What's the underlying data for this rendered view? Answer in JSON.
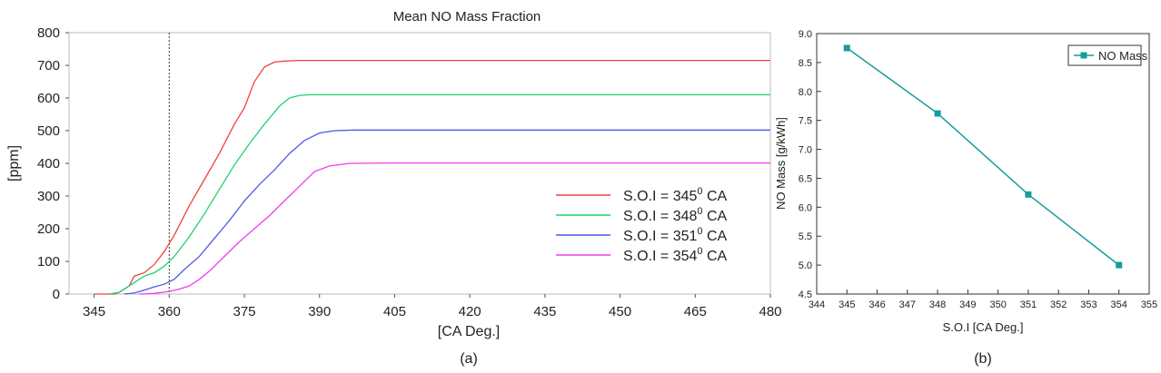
{
  "chart_data": [
    {
      "type": "line",
      "title": "Mean NO Mass Fraction",
      "xlabel": "[CA Deg.]",
      "ylabel": "[ppm]",
      "caption": "(a)",
      "xlim": [
        340,
        480
      ],
      "ylim": [
        0,
        800
      ],
      "xticks": [
        345,
        360,
        375,
        390,
        405,
        420,
        435,
        450,
        465,
        480
      ],
      "yticks": [
        0,
        100,
        200,
        300,
        400,
        500,
        600,
        700,
        800
      ],
      "reference_line_x": 360,
      "legend_position": "bottom-right",
      "series": [
        {
          "name": "S.O.I = 345",
          "sup": "0",
          "suffix": " CA",
          "color": "#f0413e",
          "x": [
            345,
            349,
            350,
            352,
            353,
            355,
            357,
            359,
            361,
            364,
            367,
            370,
            373,
            375,
            377,
            379,
            381,
            383,
            386,
            390,
            400,
            430,
            480
          ],
          "y": [
            0,
            0,
            5,
            25,
            55,
            65,
            90,
            130,
            180,
            270,
            350,
            430,
            520,
            570,
            650,
            695,
            710,
            713,
            715,
            715,
            715,
            715,
            715
          ]
        },
        {
          "name": "S.O.I = 348",
          "sup": "0",
          "suffix": " CA",
          "color": "#1ed26e",
          "x": [
            348,
            350,
            351,
            353,
            355,
            357,
            359,
            361,
            364,
            367,
            370,
            373,
            376,
            379,
            382,
            384,
            386,
            388,
            392,
            400,
            480
          ],
          "y": [
            0,
            5,
            15,
            35,
            55,
            65,
            85,
            115,
            175,
            245,
            320,
            395,
            460,
            520,
            575,
            600,
            608,
            610,
            610,
            610,
            610
          ]
        },
        {
          "name": "S.O.I = 351",
          "sup": "0",
          "suffix": " CA",
          "color": "#4c5ae8",
          "x": [
            351,
            353,
            355,
            357,
            359,
            361,
            363,
            366,
            369,
            372,
            375,
            378,
            381,
            384,
            387,
            390,
            393,
            397,
            405,
            480
          ],
          "y": [
            0,
            3,
            12,
            22,
            30,
            45,
            75,
            115,
            170,
            225,
            285,
            335,
            380,
            430,
            470,
            493,
            500,
            502,
            502,
            502
          ]
        },
        {
          "name": "S.O.I = 354",
          "sup": "0",
          "suffix": " CA",
          "color": "#ee3cf0",
          "x": [
            354,
            357,
            360,
            362,
            364,
            366,
            368,
            371,
            374,
            377,
            380,
            383,
            386,
            389,
            392,
            396,
            405,
            480
          ],
          "y": [
            0,
            2,
            8,
            15,
            25,
            45,
            70,
            115,
            160,
            200,
            240,
            285,
            330,
            375,
            392,
            400,
            401,
            401
          ]
        }
      ]
    },
    {
      "type": "line",
      "title": "",
      "xlabel": "S.O.I [CA Deg.]",
      "ylabel": "NO Mass [g/kWh]",
      "caption": "(b)",
      "xlim": [
        344,
        355
      ],
      "ylim": [
        4.5,
        9.0
      ],
      "xticks": [
        344,
        345,
        346,
        347,
        348,
        349,
        350,
        351,
        352,
        353,
        354,
        355
      ],
      "yticks": [
        "4.5",
        "5.0",
        "5.5",
        "6.0",
        "6.5",
        "7.0",
        "7.5",
        "8.0",
        "8.5",
        "9.0"
      ],
      "legend_position": "top-right",
      "series": [
        {
          "name": "NO Mass",
          "color": "#179c9c",
          "marker": "square",
          "x": [
            345,
            348,
            351,
            354
          ],
          "y": [
            8.75,
            7.62,
            6.22,
            5.0
          ]
        }
      ]
    }
  ]
}
